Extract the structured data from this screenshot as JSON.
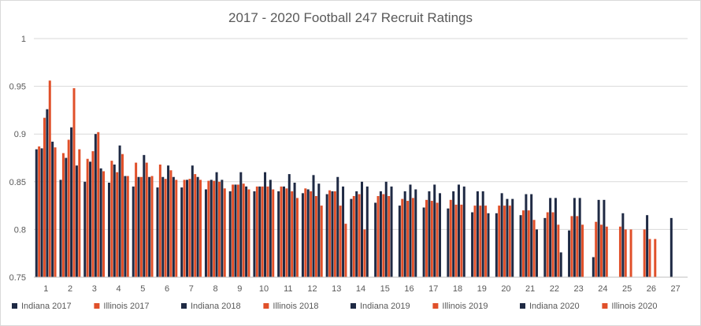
{
  "chart_data": {
    "type": "bar",
    "title": "2017 - 2020 Football 247 Recruit Ratings",
    "xlabel": "",
    "ylabel": "",
    "ylim": [
      0.75,
      1
    ],
    "yticks": [
      "0.75",
      "0.8",
      "0.85",
      "0.9",
      "0.95",
      "1"
    ],
    "categories": [
      "1",
      "2",
      "3",
      "4",
      "5",
      "6",
      "7",
      "8",
      "9",
      "10",
      "11",
      "12",
      "13",
      "14",
      "15",
      "16",
      "17",
      "18",
      "19",
      "20",
      "21",
      "22",
      "23",
      "24",
      "25",
      "26",
      "27"
    ],
    "grid": true,
    "legend_position": "bottom",
    "colors": {
      "Indiana": "#1f2a44",
      "Illinois": "#e0502a"
    },
    "series": [
      {
        "name": "Indiana 2017",
        "color": "#1f2a44",
        "values": [
          0.884,
          0.852,
          0.85,
          0.849,
          0.845,
          0.844,
          0.844,
          0.842,
          0.84,
          0.84,
          0.84,
          0.838,
          0.837,
          0.832,
          0.828,
          0.825,
          0.823,
          0.822,
          0.818,
          0.817,
          0.815,
          0.812,
          0.799,
          0.771,
          null,
          null,
          null
        ]
      },
      {
        "name": "Illinois 2017",
        "color": "#e0502a",
        "values": [
          0.887,
          0.88,
          0.874,
          0.872,
          0.87,
          0.868,
          0.852,
          0.851,
          0.847,
          0.845,
          0.845,
          0.843,
          0.841,
          0.835,
          0.835,
          0.832,
          0.831,
          0.831,
          0.825,
          0.825,
          0.82,
          0.818,
          0.814,
          0.808,
          0.803,
          0.8,
          null
        ]
      },
      {
        "name": "Indiana 2018",
        "color": "#1f2a44",
        "values": [
          0.885,
          0.875,
          0.871,
          0.868,
          0.855,
          0.855,
          0.852,
          0.852,
          0.847,
          0.845,
          0.845,
          0.842,
          0.84,
          0.84,
          0.84,
          0.84,
          0.84,
          0.84,
          0.84,
          0.838,
          0.837,
          0.833,
          0.833,
          0.831,
          0.817,
          0.815,
          0.812
        ]
      },
      {
        "name": "Illinois 2018",
        "color": "#e0502a",
        "values": [
          0.917,
          0.894,
          0.882,
          0.86,
          0.855,
          0.853,
          0.853,
          0.851,
          0.847,
          0.845,
          0.843,
          0.84,
          0.84,
          0.837,
          0.837,
          0.83,
          0.83,
          0.826,
          0.825,
          0.825,
          0.82,
          0.818,
          0.814,
          0.805,
          0.8,
          0.79,
          null
        ]
      },
      {
        "name": "Indiana 2019",
        "color": "#1f2a44",
        "values": [
          0.926,
          0.907,
          0.9,
          0.888,
          0.878,
          0.867,
          0.867,
          0.86,
          0.86,
          0.86,
          0.858,
          0.857,
          0.855,
          0.85,
          0.85,
          0.847,
          0.847,
          0.847,
          0.84,
          0.832,
          0.837,
          0.833,
          0.833,
          0.831,
          null,
          null,
          null
        ]
      },
      {
        "name": "Illinois 2019",
        "color": "#e0502a",
        "values": [
          0.956,
          0.948,
          0.902,
          0.879,
          0.87,
          0.862,
          0.858,
          0.85,
          0.848,
          0.845,
          0.84,
          0.835,
          0.825,
          0.8,
          0.835,
          0.833,
          0.828,
          0.826,
          0.825,
          0.825,
          0.81,
          0.805,
          0.805,
          0.803,
          0.8,
          0.79,
          null
        ]
      },
      {
        "name": "Indiana 2020",
        "color": "#1f2a44",
        "values": [
          0.892,
          0.867,
          0.864,
          0.856,
          0.855,
          0.855,
          0.855,
          0.852,
          0.845,
          0.852,
          0.849,
          0.848,
          0.845,
          0.845,
          0.845,
          0.842,
          0.838,
          0.845,
          0.817,
          0.832,
          0.8,
          0.776,
          null,
          null,
          null,
          null,
          null
        ]
      },
      {
        "name": "Illinois 2020",
        "color": "#e0502a",
        "values": [
          0.886,
          0.884,
          0.861,
          0.856,
          0.856,
          0.852,
          0.852,
          0.843,
          0.842,
          0.842,
          0.833,
          0.825,
          0.806,
          null,
          null,
          null,
          null,
          null,
          null,
          null,
          null,
          null,
          null,
          null,
          null,
          null,
          null
        ]
      }
    ]
  }
}
